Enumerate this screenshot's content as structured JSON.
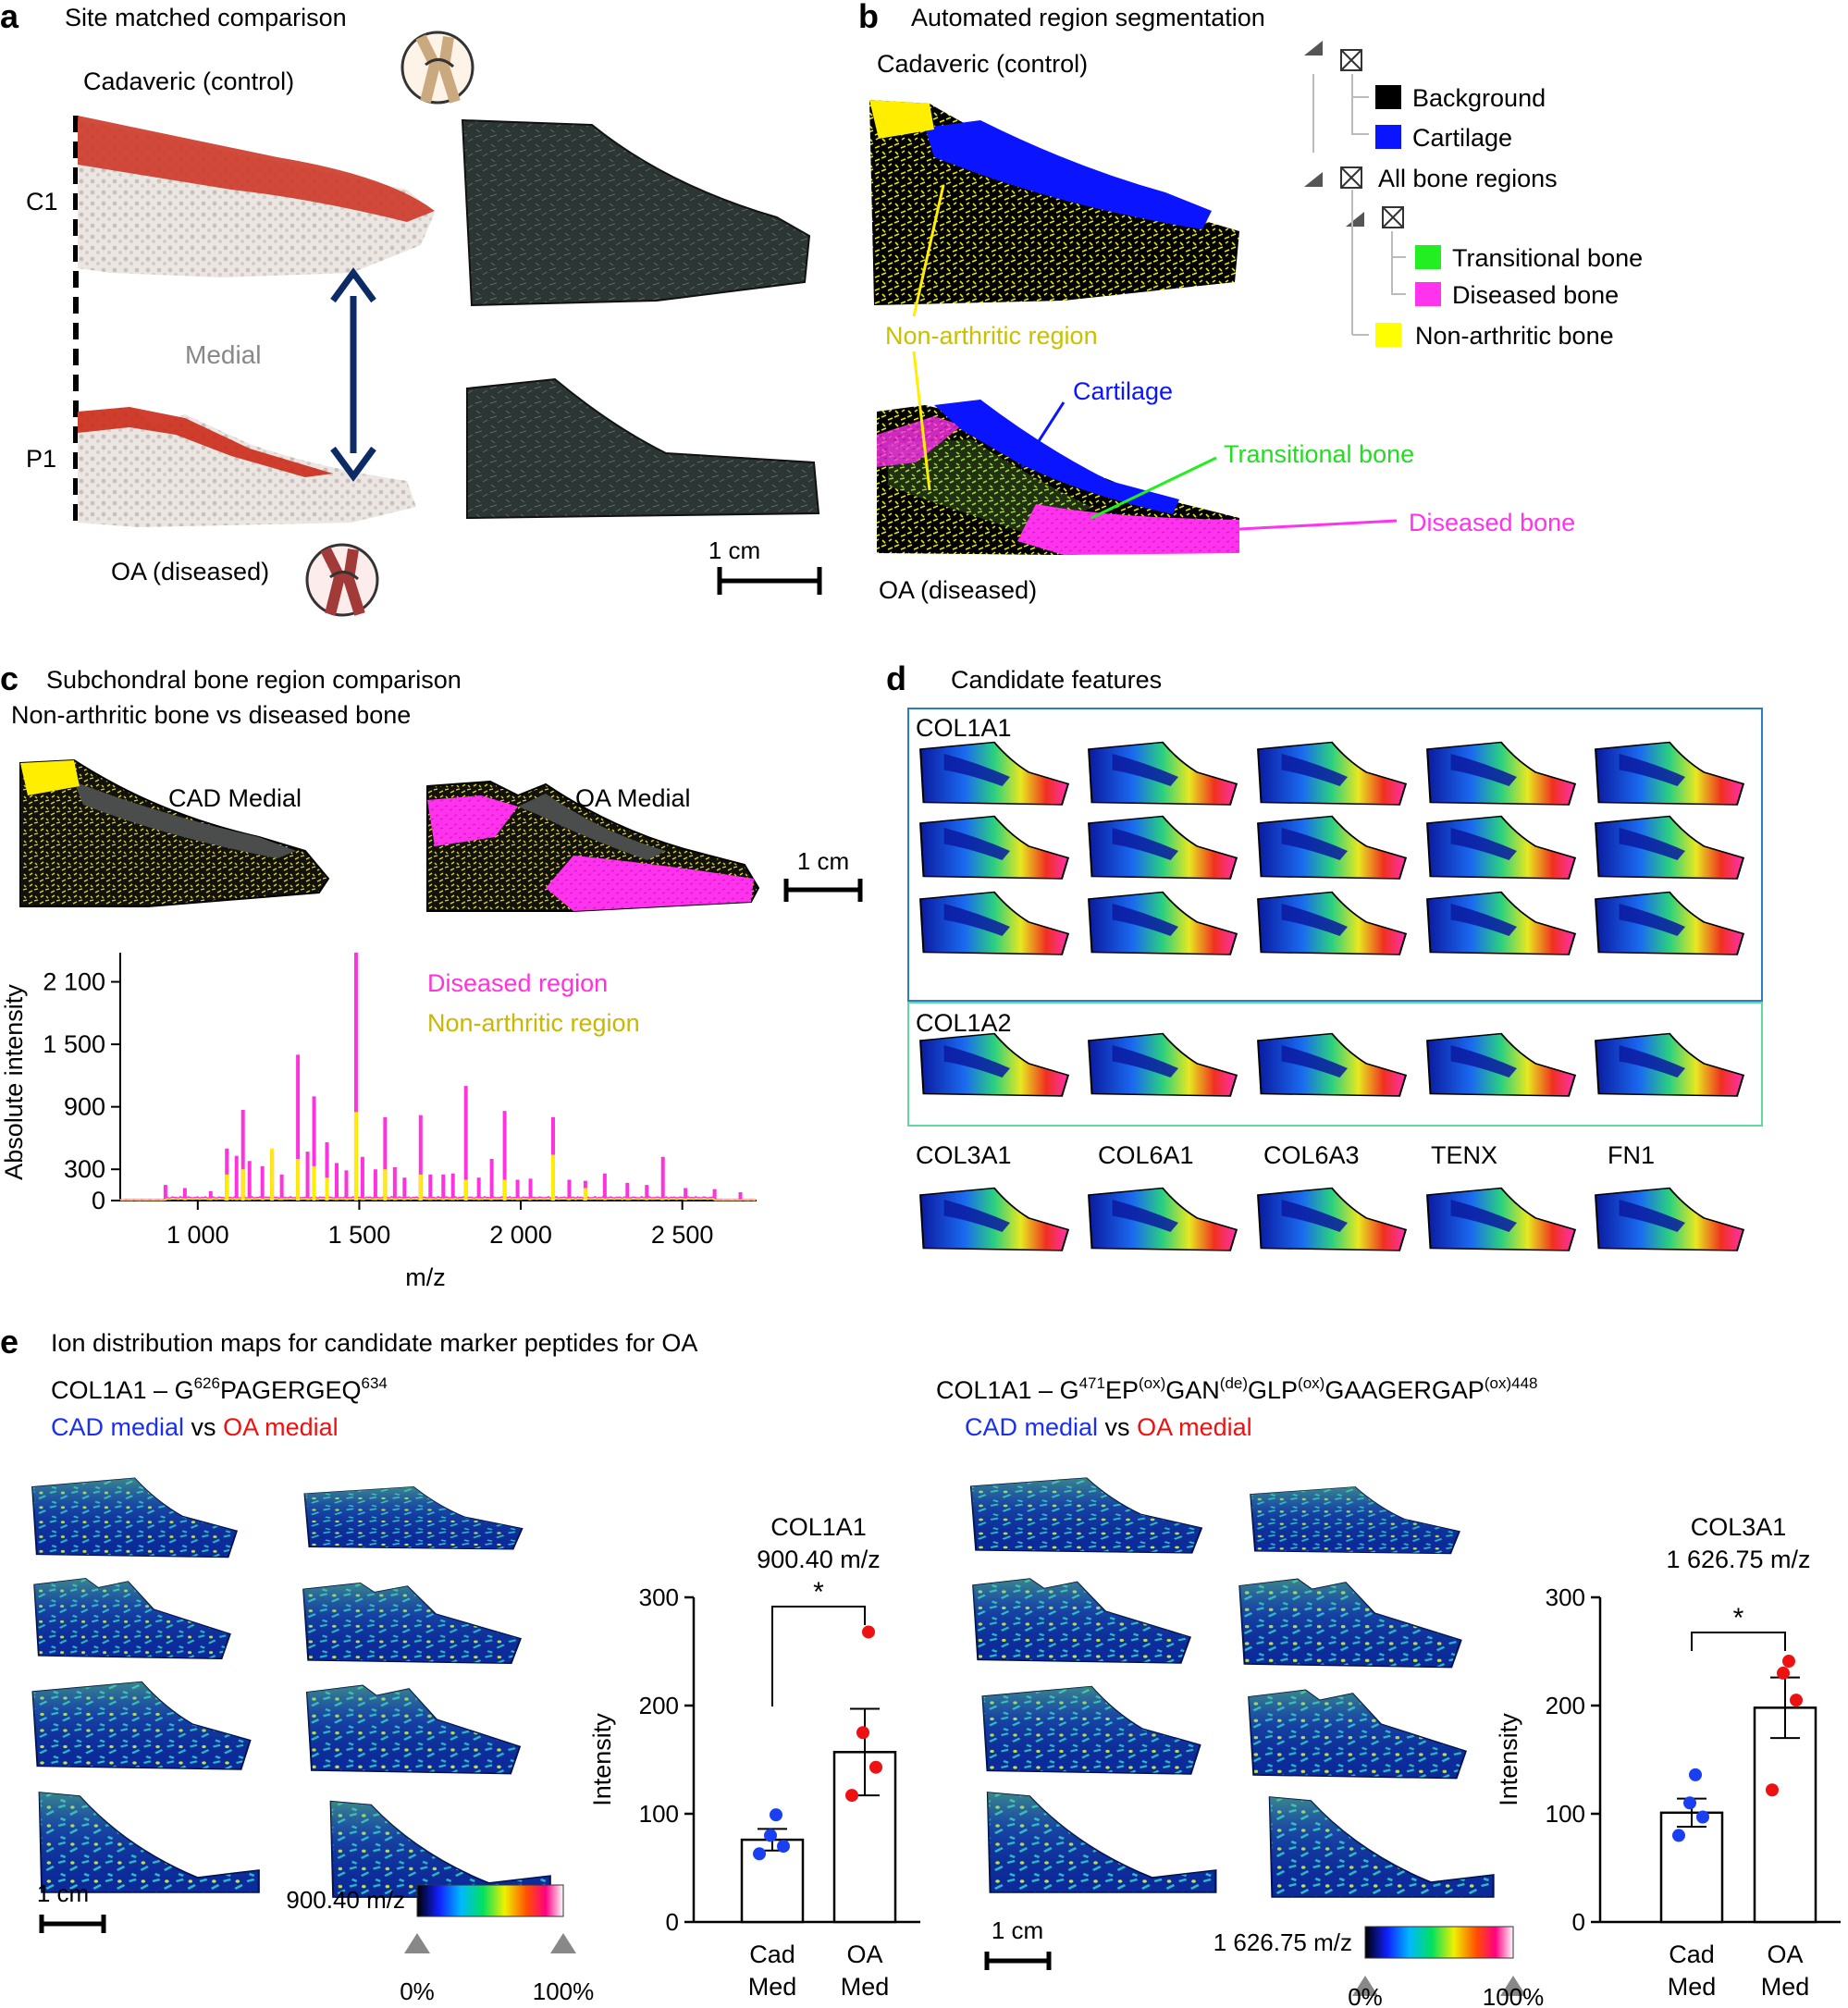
{
  "panel_a": {
    "label": "a",
    "title": "Site matched comparison",
    "control_label": "Cadaveric (control)",
    "diseased_label": "OA (diseased)",
    "c1": "C1",
    "p1": "P1",
    "medial": "Medial",
    "scale": "1 cm"
  },
  "panel_b": {
    "label": "b",
    "title": "Automated region segmentation",
    "control_label": "Cadaveric (control)",
    "diseased_label": "OA (diseased)",
    "ann_nonarthritic": "Non-arthritic region",
    "ann_cartilage": "Cartilage",
    "ann_transitional": "Transitional bone",
    "ann_diseased": "Diseased bone",
    "tree": {
      "background": "Background",
      "cartilage": "Cartilage",
      "all_bone": "All bone regions",
      "transitional": "Transitional bone",
      "diseased": "Diseased bone",
      "nonarthritic": "Non-arthritic bone"
    },
    "colors": {
      "background": "#000000",
      "cartilage": "#0a14ff",
      "transitional": "#22ee22",
      "diseased": "#ff33ee",
      "nonarthritic": "#ffff00"
    }
  },
  "panel_c": {
    "label": "c",
    "title": "Subchondral bone region comparison",
    "subtitle": "Non-arthritic bone vs diseased bone",
    "cad_label": "CAD Medial",
    "oa_label": "OA Medial",
    "scale": "1 cm",
    "chart_data": {
      "type": "line",
      "xlabel": "m/z",
      "ylabel": "Absolute intensity",
      "xlim": [
        760,
        2730
      ],
      "ylim": [
        0,
        2380
      ],
      "xticks": [
        1000,
        1500,
        2000,
        2500
      ],
      "xtick_labels": [
        "1 000",
        "1 500",
        "2 000",
        "2 500"
      ],
      "yticks": [
        0,
        300,
        900,
        1500,
        2100
      ],
      "ytick_labels": [
        "0",
        "300",
        "900",
        "1 500",
        "2 100"
      ],
      "legend": [
        "Diseased region",
        "Non-arthritic region"
      ],
      "series": [
        {
          "name": "Diseased region",
          "color": "#ff33dd",
          "peaks": [
            [
              900,
              150
            ],
            [
              960,
              120
            ],
            [
              1040,
              90
            ],
            [
              1090,
              500
            ],
            [
              1120,
              430
            ],
            [
              1140,
              870
            ],
            [
              1160,
              380
            ],
            [
              1200,
              330
            ],
            [
              1230,
              480
            ],
            [
              1260,
              250
            ],
            [
              1310,
              1400
            ],
            [
              1340,
              470
            ],
            [
              1360,
              1000
            ],
            [
              1400,
              560
            ],
            [
              1430,
              360
            ],
            [
              1460,
              290
            ],
            [
              1490,
              2380
            ],
            [
              1510,
              420
            ],
            [
              1550,
              300
            ],
            [
              1580,
              800
            ],
            [
              1610,
              320
            ],
            [
              1640,
              220
            ],
            [
              1690,
              820
            ],
            [
              1720,
              250
            ],
            [
              1760,
              250
            ],
            [
              1790,
              260
            ],
            [
              1830,
              1100
            ],
            [
              1870,
              220
            ],
            [
              1910,
              400
            ],
            [
              1950,
              860
            ],
            [
              1990,
              200
            ],
            [
              2030,
              210
            ],
            [
              2100,
              800
            ],
            [
              2150,
              200
            ],
            [
              2200,
              190
            ],
            [
              2260,
              260
            ],
            [
              2330,
              170
            ],
            [
              2390,
              150
            ],
            [
              2440,
              420
            ],
            [
              2510,
              120
            ],
            [
              2600,
              110
            ],
            [
              2680,
              80
            ]
          ]
        },
        {
          "name": "Non-arthritic region",
          "color": "#ffee00",
          "peaks": [
            [
              1090,
              250
            ],
            [
              1140,
              300
            ],
            [
              1230,
              500
            ],
            [
              1310,
              400
            ],
            [
              1360,
              330
            ],
            [
              1400,
              220
            ],
            [
              1490,
              850
            ],
            [
              1580,
              300
            ],
            [
              1690,
              250
            ],
            [
              1830,
              200
            ],
            [
              1950,
              200
            ],
            [
              2100,
              440
            ],
            [
              2200,
              120
            ]
          ]
        }
      ]
    }
  },
  "panel_d": {
    "label": "d",
    "title": "Candidate features",
    "group1": "COL1A1",
    "group2": "COL1A2",
    "row_labels": [
      "COL3A1",
      "COL6A1",
      "COL6A3",
      "TENX",
      "FN1"
    ]
  },
  "panel_e": {
    "label": "e",
    "title": "Ion distribution maps for candidate marker peptides for OA",
    "left": {
      "peptide_prefix": "COL1A1 – G",
      "sup1": "626",
      "peptide_body": "PAGERGEQ",
      "sup2": "634",
      "cmp_cad": "CAD medial",
      "cmp_vs": " vs ",
      "cmp_oa": "OA medial",
      "scale": "1 cm",
      "colorbar_label": "900.40 m/z",
      "min_label": "0%",
      "max_label": "100%"
    },
    "right": {
      "peptide_parts": [
        "COL1A1 – G",
        "471",
        "EP",
        "(ox)",
        "GAN",
        "(de)",
        "GLP",
        "(ox)",
        "GAAGERGAP",
        "(ox)448"
      ],
      "cmp_cad": "CAD medial",
      "cmp_vs": " vs ",
      "cmp_oa": "OA medial",
      "scale": "1 cm",
      "colorbar_label": "1 626.75 m/z",
      "min_label": "0%",
      "max_label": "100%"
    },
    "chart_data": [
      {
        "type": "bar",
        "title": "COL1A1",
        "subtitle": "900.40 m/z",
        "ylabel": "Intensity",
        "ylim": [
          0,
          300
        ],
        "yticks": [
          0,
          100,
          200,
          300
        ],
        "ytick_labels": [
          "0",
          "100",
          "200",
          "300"
        ],
        "categories": [
          "Cad\nMed",
          "OA\nMed"
        ],
        "category_lines": [
          [
            "Cad",
            "Med"
          ],
          [
            "OA",
            "Med"
          ]
        ],
        "values": [
          76,
          157
        ],
        "errors": [
          10,
          40
        ],
        "points": [
          [
            63,
            70,
            80,
            99
          ],
          [
            117,
            143,
            175,
            268
          ]
        ],
        "point_colors": [
          "#1a3ff0",
          "#ee1111"
        ],
        "significance": "*"
      },
      {
        "type": "bar",
        "title": "COL3A1",
        "subtitle": "1 626.75 m/z",
        "ylabel": "Intensity",
        "ylim": [
          0,
          300
        ],
        "yticks": [
          0,
          100,
          200,
          300
        ],
        "ytick_labels": [
          "0",
          "100",
          "200",
          "300"
        ],
        "categories": [
          "Cad\nMed",
          "OA\nMed"
        ],
        "category_lines": [
          [
            "Cad",
            "Med"
          ],
          [
            "OA",
            "Med"
          ]
        ],
        "values": [
          101,
          198
        ],
        "errors": [
          13,
          28
        ],
        "points": [
          [
            80,
            97,
            110,
            136
          ],
          [
            122,
            205,
            230,
            241
          ]
        ],
        "point_colors": [
          "#1a3ff0",
          "#ee1111"
        ],
        "significance": "*"
      }
    ]
  }
}
